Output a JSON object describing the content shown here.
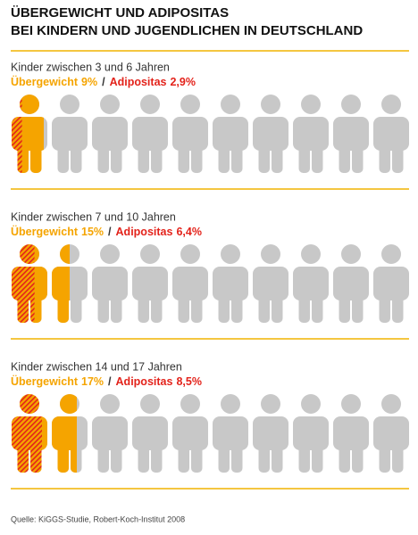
{
  "title_lines": [
    "ÜBERGEWICHT UND ADIPOSITAS",
    "BEI KINDERN UND JUGENDLICHEN IN DEUTSCHLAND"
  ],
  "separator": "/",
  "source": "Quelle: KiGGS-Studie, Robert-Koch-Institut 2008",
  "chart_data": [
    {
      "type": "pictograph",
      "subtitle": "Kinder zwischen 3 und 6 Jahren",
      "xlim": [
        0,
        100
      ],
      "icons": 10,
      "icon_color": "#c8c8c8",
      "series": [
        {
          "name": "Übergewicht",
          "color": "#f5a400",
          "values": [
            9
          ],
          "value_labels": [
            "9%"
          ]
        },
        {
          "name": "Adipositas",
          "color": "#e3231b",
          "values": [
            2.9
          ],
          "value_labels": [
            "2,9%"
          ]
        }
      ]
    },
    {
      "type": "pictograph",
      "subtitle": "Kinder zwischen 7 und 10 Jahren",
      "xlim": [
        0,
        100
      ],
      "icons": 10,
      "icon_color": "#c8c8c8",
      "series": [
        {
          "name": "Übergewicht",
          "color": "#f5a400",
          "values": [
            15
          ],
          "value_labels": [
            "15%"
          ]
        },
        {
          "name": "Adipositas",
          "color": "#e3231b",
          "values": [
            6.4
          ],
          "value_labels": [
            "6,4%"
          ]
        }
      ]
    },
    {
      "type": "pictograph",
      "subtitle": "Kinder zwischen 14 und 17 Jahren",
      "xlim": [
        0,
        100
      ],
      "icons": 10,
      "icon_color": "#c8c8c8",
      "series": [
        {
          "name": "Übergewicht",
          "color": "#f5a400",
          "values": [
            17
          ],
          "value_labels": [
            "17%"
          ]
        },
        {
          "name": "Adipositas",
          "color": "#e3231b",
          "values": [
            8.5
          ],
          "value_labels": [
            "8,5%"
          ]
        }
      ]
    }
  ]
}
